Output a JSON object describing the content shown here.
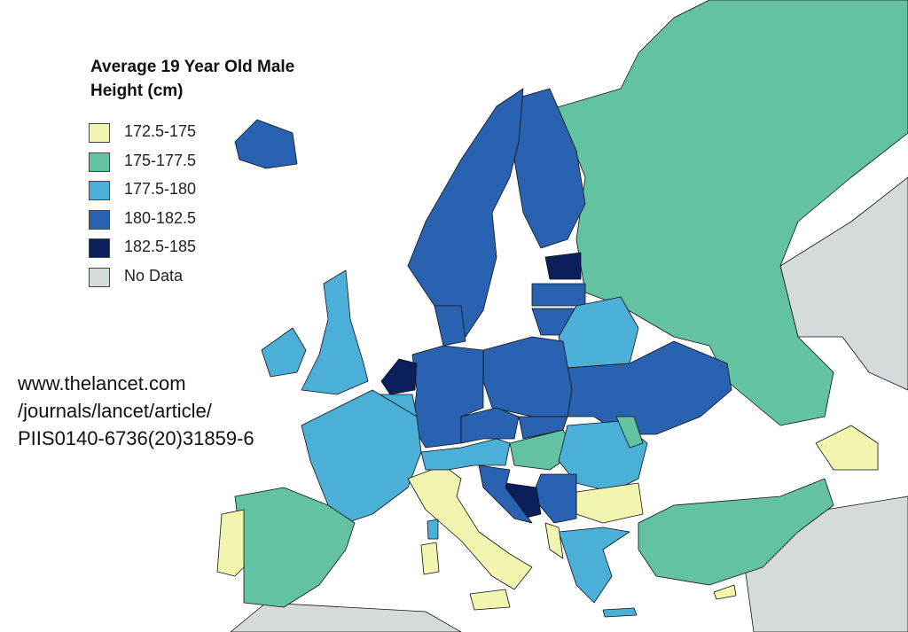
{
  "title": "Average 19 Year Old Male Height (cm)",
  "legend": [
    {
      "label": "172.5-175",
      "color": "#f1f5b0"
    },
    {
      "label": "175-177.5",
      "color": "#62c2a2"
    },
    {
      "label": "177.5-180",
      "color": "#4cafd8"
    },
    {
      "label": "180-182.5",
      "color": "#2862b0"
    },
    {
      "label": "182.5-185",
      "color": "#0b1f5c"
    },
    {
      "label": "No Data",
      "color": "#d5dbdc"
    }
  ],
  "source": [
    "www.thelancet.com",
    "/journals/lancet/article/",
    "PIIS0140-6736(20)31859-6"
  ]
}
